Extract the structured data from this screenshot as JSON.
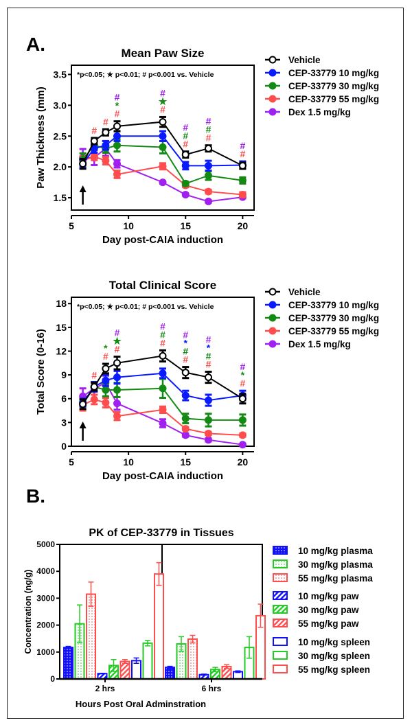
{
  "panels": {
    "A": {
      "label": "A."
    },
    "B": {
      "label": "B."
    }
  },
  "colors": {
    "vehicle": "#000000",
    "cep10": "#0a1aff",
    "cep30": "#138a13",
    "cep55": "#ff4d4d",
    "dex": "#a020f0",
    "pk10": "#1010ff",
    "pk30": "#22cc22",
    "pk55": "#ff4d4d"
  },
  "chart_data": [
    {
      "type": "line",
      "title": "Mean Paw Size",
      "xlabel": "Day post-CAIA induction",
      "ylabel": "Paw Thickness  (mm)",
      "xlim": [
        5,
        21
      ],
      "ylim": [
        1.3,
        3.65
      ],
      "xticks": [
        5,
        10,
        15,
        20
      ],
      "yticks": [
        1.5,
        2.0,
        2.5,
        3.0,
        3.5
      ],
      "ytick_labels": [
        "1.5",
        "2.0",
        "2.5",
        "3.0",
        "3.5"
      ],
      "annotation": "*p<0.05; ★ p<0.01; # p<0.001 vs. Vehicle",
      "arrow_day": 6,
      "legend_position": "right",
      "x": [
        6,
        7,
        8,
        9,
        13,
        15,
        17,
        20
      ],
      "series": [
        {
          "name": "Vehicle",
          "key": "vehicle",
          "open": true,
          "values": [
            2.05,
            2.42,
            2.56,
            2.66,
            2.73,
            2.2,
            2.3,
            2.02
          ],
          "err": [
            0.08,
            0.05,
            0.05,
            0.08,
            0.08,
            0.05,
            0.05,
            0.05
          ]
        },
        {
          "name": "CEP-33779 10 mg/kg",
          "key": "cep10",
          "values": [
            2.05,
            2.3,
            2.35,
            2.5,
            2.5,
            2.02,
            2.02,
            2.03
          ],
          "err": [
            0.07,
            0.07,
            0.07,
            0.08,
            0.08,
            0.06,
            0.08,
            0.06
          ]
        },
        {
          "name": "CEP-33779 30 mg/kg",
          "key": "cep30",
          "values": [
            2.12,
            2.35,
            2.3,
            2.35,
            2.32,
            1.73,
            1.86,
            1.78
          ],
          "err": [
            0.1,
            0.08,
            0.07,
            0.1,
            0.1,
            0.03,
            0.07,
            0.05
          ]
        },
        {
          "name": "CEP-33779 55 mg/kg",
          "key": "cep55",
          "values": [
            2.1,
            2.17,
            2.1,
            1.88,
            2.01,
            1.7,
            1.6,
            1.55
          ],
          "err": [
            0.07,
            0.06,
            0.06,
            0.06,
            0.05,
            0.03,
            0.03,
            0.04
          ]
        },
        {
          "name": "Dex 1.5 mg/kg",
          "key": "dex",
          "values": [
            2.15,
            2.15,
            2.3,
            2.05,
            1.75,
            1.55,
            1.44,
            1.51
          ],
          "err": [
            0.14,
            0.12,
            0.12,
            0.06,
            0.02,
            0.02,
            0.02,
            0.02
          ]
        }
      ],
      "sig_marks": [
        {
          "day": 7,
          "marks": [
            {
              "sym": "#",
              "key": "cep55"
            }
          ]
        },
        {
          "day": 8,
          "marks": [
            {
              "sym": "#",
              "key": "cep55"
            }
          ]
        },
        {
          "day": 9,
          "marks": [
            {
              "sym": "#",
              "key": "cep55"
            },
            {
              "sym": "*",
              "key": "cep30"
            },
            {
              "sym": "#",
              "key": "dex"
            }
          ]
        },
        {
          "day": 13,
          "marks": [
            {
              "sym": "#",
              "key": "cep55"
            },
            {
              "sym": "★",
              "key": "cep30"
            },
            {
              "sym": "#",
              "key": "dex"
            }
          ]
        },
        {
          "day": 15,
          "marks": [
            {
              "sym": "#",
              "key": "cep55"
            },
            {
              "sym": "#",
              "key": "cep30"
            },
            {
              "sym": "#",
              "key": "dex"
            }
          ]
        },
        {
          "day": 17,
          "marks": [
            {
              "sym": "#",
              "key": "cep55"
            },
            {
              "sym": "#",
              "key": "cep30"
            },
            {
              "sym": "#",
              "key": "dex"
            }
          ]
        },
        {
          "day": 20,
          "marks": [
            {
              "sym": "#",
              "key": "cep55"
            },
            {
              "sym": "#",
              "key": "dex"
            }
          ]
        }
      ]
    },
    {
      "type": "line",
      "title": "Total Clinical Score",
      "xlabel": "Day post-CAIA induction",
      "ylabel": "Total Score (0-16)",
      "xlim": [
        5,
        21
      ],
      "ylim": [
        0,
        18.8
      ],
      "xticks": [
        5,
        10,
        15,
        20
      ],
      "yticks": [
        0,
        3,
        6,
        9,
        12,
        15,
        18
      ],
      "ytick_labels": [
        "0",
        "3",
        "6",
        "9",
        "12",
        "15",
        "18"
      ],
      "annotation": "*p<0.05; ★ p<0.01; # p<0.001 vs. Vehicle",
      "arrow_day": 6,
      "legend_position": "right",
      "x": [
        6,
        7,
        8,
        9,
        13,
        15,
        17,
        20
      ],
      "series": [
        {
          "name": "Vehicle",
          "key": "vehicle",
          "open": true,
          "values": [
            5.3,
            7.5,
            9.8,
            10.5,
            11.4,
            9.3,
            8.7,
            6.0
          ],
          "err": [
            0.6,
            0.5,
            0.6,
            0.8,
            0.7,
            0.7,
            0.7,
            0.6
          ]
        },
        {
          "name": "CEP-33779 10 mg/kg",
          "key": "cep10",
          "values": [
            5.5,
            7.5,
            8.3,
            8.7,
            9.2,
            6.4,
            5.8,
            6.4
          ],
          "err": [
            0.5,
            0.6,
            0.7,
            0.8,
            0.6,
            0.6,
            0.7,
            0.6
          ]
        },
        {
          "name": "CEP-33779 30 mg/kg",
          "key": "cep30",
          "values": [
            5.5,
            7.5,
            7.1,
            7.1,
            7.3,
            3.5,
            3.3,
            3.3
          ],
          "err": [
            0.5,
            0.6,
            0.8,
            0.9,
            1.2,
            0.6,
            0.8,
            0.7
          ]
        },
        {
          "name": "CEP-33779 55 mg/kg",
          "key": "cep55",
          "values": [
            5.2,
            5.9,
            5.5,
            3.8,
            4.6,
            2.2,
            1.6,
            1.4
          ],
          "err": [
            0.7,
            0.6,
            0.6,
            0.5,
            0.4,
            0.2,
            0.2,
            0.2
          ]
        },
        {
          "name": "Dex 1.5 mg/kg",
          "key": "dex",
          "values": [
            6.3,
            7.3,
            8.0,
            5.4,
            2.9,
            1.4,
            0.8,
            0.2
          ],
          "err": [
            1.0,
            0.8,
            0.9,
            0.8,
            0.5,
            0.2,
            0.2,
            0.1
          ]
        }
      ],
      "sig_marks": [
        {
          "day": 7,
          "marks": [
            {
              "sym": "#",
              "key": "cep55"
            }
          ]
        },
        {
          "day": 8,
          "marks": [
            {
              "sym": "#",
              "key": "cep55"
            },
            {
              "sym": "*",
              "key": "cep30"
            }
          ]
        },
        {
          "day": 9,
          "marks": [
            {
              "sym": "#",
              "key": "cep55"
            },
            {
              "sym": "★",
              "key": "cep30"
            },
            {
              "sym": "#",
              "key": "dex"
            }
          ]
        },
        {
          "day": 13,
          "marks": [
            {
              "sym": "#",
              "key": "cep55"
            },
            {
              "sym": "#",
              "key": "cep30"
            },
            {
              "sym": "#",
              "key": "dex"
            }
          ]
        },
        {
          "day": 15,
          "marks": [
            {
              "sym": "#",
              "key": "cep55"
            },
            {
              "sym": "#",
              "key": "cep30"
            },
            {
              "sym": "*",
              "key": "cep10"
            },
            {
              "sym": "#",
              "key": "dex"
            }
          ]
        },
        {
          "day": 17,
          "marks": [
            {
              "sym": "#",
              "key": "cep55"
            },
            {
              "sym": "#",
              "key": "cep30"
            },
            {
              "sym": "*",
              "key": "cep10"
            },
            {
              "sym": "#",
              "key": "dex"
            }
          ]
        },
        {
          "day": 20,
          "marks": [
            {
              "sym": "#",
              "key": "cep55"
            },
            {
              "sym": "*",
              "key": "cep30"
            },
            {
              "sym": "#",
              "key": "dex"
            }
          ]
        }
      ]
    },
    {
      "type": "bar",
      "title": "PK of CEP-33779 in Tissues",
      "xlabel": "Hours Post Oral Adminstration",
      "ylabel": "Concentration (ng/g)",
      "ylim": [
        0,
        5000
      ],
      "yticks": [
        0,
        1000,
        2000,
        3000,
        4000,
        5000
      ],
      "categories": [
        "2 hrs",
        "6 hrs"
      ],
      "legend_position": "right",
      "series": [
        {
          "name": "10 mg/kg plasma",
          "key": "pk10",
          "fill": "dots",
          "values": [
            1170,
            430
          ],
          "err": [
            40,
            40
          ]
        },
        {
          "name": "30 mg/kg plasma",
          "key": "pk30",
          "fill": "dots",
          "values": [
            2050,
            1300
          ],
          "err": [
            700,
            270
          ]
        },
        {
          "name": "55 mg/kg plasma",
          "key": "pk55",
          "fill": "dots",
          "values": [
            3150,
            1480
          ],
          "err": [
            450,
            140
          ]
        },
        {
          "name": "10 mg/kg paw",
          "key": "pk10",
          "fill": "hatch",
          "values": [
            200,
            160
          ],
          "err": [
            10,
            20
          ]
        },
        {
          "name": "30 mg/kg paw",
          "key": "pk30",
          "fill": "hatch",
          "values": [
            500,
            350
          ],
          "err": [
            220,
            80
          ]
        },
        {
          "name": "55 mg/kg paw",
          "key": "pk55",
          "fill": "hatch",
          "values": [
            650,
            460
          ],
          "err": [
            70,
            70
          ]
        },
        {
          "name": "10 mg/kg spleen",
          "key": "pk10",
          "fill": "none",
          "values": [
            680,
            270
          ],
          "err": [
            100,
            30
          ]
        },
        {
          "name": "30 mg/kg spleen",
          "key": "pk30",
          "fill": "none",
          "values": [
            1330,
            1170
          ],
          "err": [
            100,
            400
          ]
        },
        {
          "name": "55 mg/kg spleen",
          "key": "pk55",
          "fill": "none",
          "values": [
            3900,
            2350
          ],
          "err": [
            420,
            430
          ]
        }
      ]
    }
  ]
}
